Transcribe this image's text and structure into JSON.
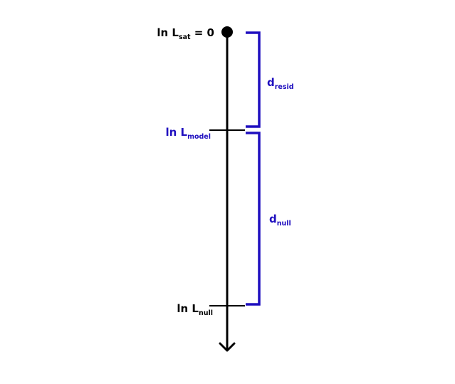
{
  "labels": {
    "sat": {
      "base": "ln L",
      "sub": "sat",
      "suffix": " = 0"
    },
    "model": {
      "base": "ln L",
      "sub": "model"
    },
    "null": {
      "base": "ln L",
      "sub": "null"
    }
  },
  "brackets": {
    "resid": {
      "base": "d",
      "sub": "resid"
    },
    "null": {
      "base": "d",
      "sub": "null"
    }
  },
  "colors": {
    "axis": "#000000",
    "text": "#000000",
    "accent": "#1f0fbf"
  }
}
